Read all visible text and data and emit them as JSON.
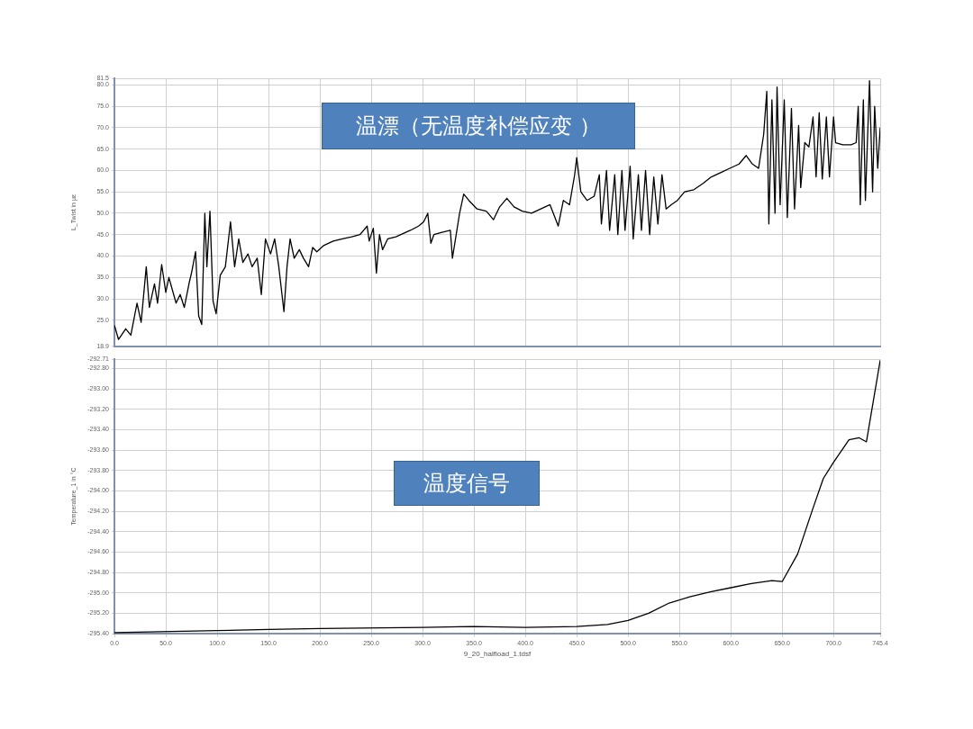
{
  "chart_data": [
    {
      "type": "line",
      "ylabel": "L_Twist in µε",
      "annotations": [
        "温漂（无温度补偿应变 ）"
      ],
      "tick_labels": "y",
      "grid": true,
      "legend": false,
      "marker": "none",
      "line_style": "solid",
      "xlim": [
        0,
        745.4
      ],
      "xticks": [
        0,
        50,
        100,
        150,
        200,
        250,
        300,
        350,
        400,
        450,
        500,
        550,
        600,
        650,
        700,
        745.4
      ],
      "ylim": [
        18.9,
        81.5
      ],
      "yticks": [
        18.9,
        {
          "value": 25,
          "label": "25.0"
        },
        {
          "value": 30,
          "label": "30.0"
        },
        {
          "value": 35,
          "label": "35.0"
        },
        {
          "value": 40,
          "label": "40.0"
        },
        {
          "value": 45,
          "label": "45.0"
        },
        {
          "value": 50,
          "label": "50.0"
        },
        {
          "value": 55,
          "label": "55.0"
        },
        {
          "value": 60,
          "label": "60.0"
        },
        {
          "value": 65,
          "label": "65.0"
        },
        {
          "value": 70,
          "label": "70.0"
        },
        {
          "value": 75,
          "label": "75.0"
        },
        {
          "value": 80,
          "label": "80.0"
        },
        81.5
      ],
      "series": [
        {
          "color": "#000000",
          "x": [
            0,
            4,
            11,
            16,
            22,
            26,
            31,
            34,
            39,
            42,
            46,
            50,
            53,
            60,
            64,
            68,
            73,
            75,
            79,
            82,
            85,
            88,
            90,
            93,
            96,
            99,
            103,
            108,
            113,
            117,
            121,
            125,
            130,
            134,
            139,
            143,
            147,
            152,
            156,
            160,
            165,
            168,
            171,
            175,
            180,
            184,
            189,
            193,
            197,
            204,
            213,
            222,
            231,
            239,
            246,
            248,
            252,
            255,
            258,
            261,
            266,
            274,
            288,
            296,
            301,
            305,
            308,
            311,
            318,
            327,
            329,
            336,
            340,
            345,
            353,
            362,
            369,
            375,
            382,
            389,
            397,
            406,
            415,
            424,
            428,
            432,
            437,
            443,
            448,
            450,
            454,
            460,
            467,
            472,
            474,
            479,
            482,
            487,
            490,
            494,
            497,
            502,
            505,
            510,
            513,
            517,
            521,
            525,
            529,
            533,
            537,
            542,
            548,
            555,
            564,
            573,
            581,
            590,
            599,
            608,
            615,
            621,
            627,
            632,
            635,
            637,
            640,
            643,
            645,
            648,
            652,
            655,
            659,
            662,
            666,
            668,
            672,
            676,
            680,
            683,
            686,
            689,
            693,
            696,
            700,
            702,
            709,
            717,
            722,
            724,
            726,
            729,
            731,
            735,
            738,
            740,
            743,
            745.4
          ],
          "values": [
            23.8,
            20.5,
            23,
            21.5,
            29,
            24.5,
            37.5,
            28,
            33.5,
            29,
            38,
            31.5,
            35,
            29,
            31,
            28,
            34,
            36,
            41,
            26,
            24,
            50,
            37.5,
            50.5,
            29.5,
            26.5,
            35.5,
            37.5,
            48,
            37.5,
            44,
            38.5,
            40.5,
            37.5,
            39.5,
            31,
            44,
            40.5,
            44,
            37.5,
            27,
            37.5,
            44,
            39.5,
            41.5,
            39.5,
            37.5,
            42,
            41,
            42.5,
            43.5,
            44,
            44.5,
            45,
            47,
            43.5,
            46.5,
            36,
            45,
            41.5,
            44,
            44.5,
            46,
            47,
            48,
            50,
            43,
            45,
            45.5,
            46,
            39.5,
            50,
            54.5,
            53,
            51,
            50.5,
            48.5,
            51.5,
            53.5,
            51.5,
            50.5,
            50,
            51,
            52,
            49.5,
            47,
            53,
            52,
            59,
            63,
            55,
            53,
            54,
            59,
            47.5,
            60,
            46,
            59,
            45,
            60,
            46,
            61,
            44,
            59,
            46,
            60,
            45,
            58.5,
            47.5,
            59,
            51,
            52,
            53,
            55,
            55.5,
            57,
            58.5,
            59.5,
            60.5,
            61.5,
            63.5,
            61.5,
            60.5,
            68.5,
            78.5,
            47.5,
            76.5,
            50,
            79.5,
            52,
            76.5,
            49,
            74.5,
            51,
            70.5,
            56,
            66.5,
            65.5,
            72.5,
            58.5,
            73.5,
            58,
            72.5,
            58.5,
            72.5,
            66.5,
            66,
            66,
            66.5,
            75,
            52,
            76.5,
            53,
            81,
            55,
            75,
            60.5,
            70
          ]
        }
      ]
    },
    {
      "type": "line",
      "xlabel": "9_20_halfload_1.tdsf",
      "ylabel": "Temperature_1 in °C",
      "annotations": [
        "温度信号"
      ],
      "grid": true,
      "legend": false,
      "marker": "none",
      "line_style": "solid",
      "xlim": [
        0,
        745.4
      ],
      "xticks": [
        {
          "value": 0,
          "label": "0.0"
        },
        {
          "value": 50,
          "label": "50.0"
        },
        {
          "value": 100,
          "label": "100.0"
        },
        {
          "value": 150,
          "label": "150.0"
        },
        {
          "value": 200,
          "label": "200.0"
        },
        {
          "value": 250,
          "label": "250.0"
        },
        {
          "value": 300,
          "label": "300.0"
        },
        {
          "value": 350,
          "label": "350.0"
        },
        {
          "value": 400,
          "label": "400.0"
        },
        {
          "value": 450,
          "label": "450.0"
        },
        {
          "value": 500,
          "label": "500.0"
        },
        {
          "value": 550,
          "label": "550.0"
        },
        {
          "value": 600,
          "label": "600.0"
        },
        {
          "value": 650,
          "label": "650.0"
        },
        {
          "value": 700,
          "label": "700.0"
        },
        {
          "value": 745.4,
          "label": "745.4"
        }
      ],
      "ylim": [
        -295.4,
        -292.71
      ],
      "yticks": [
        -292.71,
        {
          "value": -292.8,
          "label": "-292.80"
        },
        {
          "value": -293,
          "label": "-293.00"
        },
        {
          "value": -293.2,
          "label": "-293.20"
        },
        {
          "value": -293.4,
          "label": "-293.40"
        },
        {
          "value": -293.6,
          "label": "-293.60"
        },
        {
          "value": -293.8,
          "label": "-293.80"
        },
        {
          "value": -294,
          "label": "-294.00"
        },
        {
          "value": -294.2,
          "label": "-294.20"
        },
        {
          "value": -294.4,
          "label": "-294.40"
        },
        {
          "value": -294.6,
          "label": "-294.60"
        },
        {
          "value": -294.8,
          "label": "-294.80"
        },
        {
          "value": -295,
          "label": "-295.00"
        },
        {
          "value": -295.2,
          "label": "-295.20"
        },
        {
          "value": -295.4,
          "label": "-295.40"
        }
      ],
      "series": [
        {
          "color": "#000000",
          "x": [
            0,
            100,
            150,
            200,
            300,
            350,
            400,
            450,
            480,
            500,
            520,
            540,
            560,
            580,
            600,
            620,
            640,
            650,
            665,
            680,
            690,
            700,
            715,
            725,
            732,
            745.4
          ],
          "values": [
            -295.39,
            -295.37,
            -295.36,
            -295.35,
            -295.34,
            -295.33,
            -295.34,
            -295.33,
            -295.31,
            -295.27,
            -295.2,
            -295.1,
            -295.04,
            -294.99,
            -294.95,
            -294.91,
            -294.88,
            -294.89,
            -294.62,
            -294.17,
            -293.88,
            -293.72,
            -293.5,
            -293.48,
            -293.52,
            -292.72
          ]
        }
      ]
    }
  ]
}
